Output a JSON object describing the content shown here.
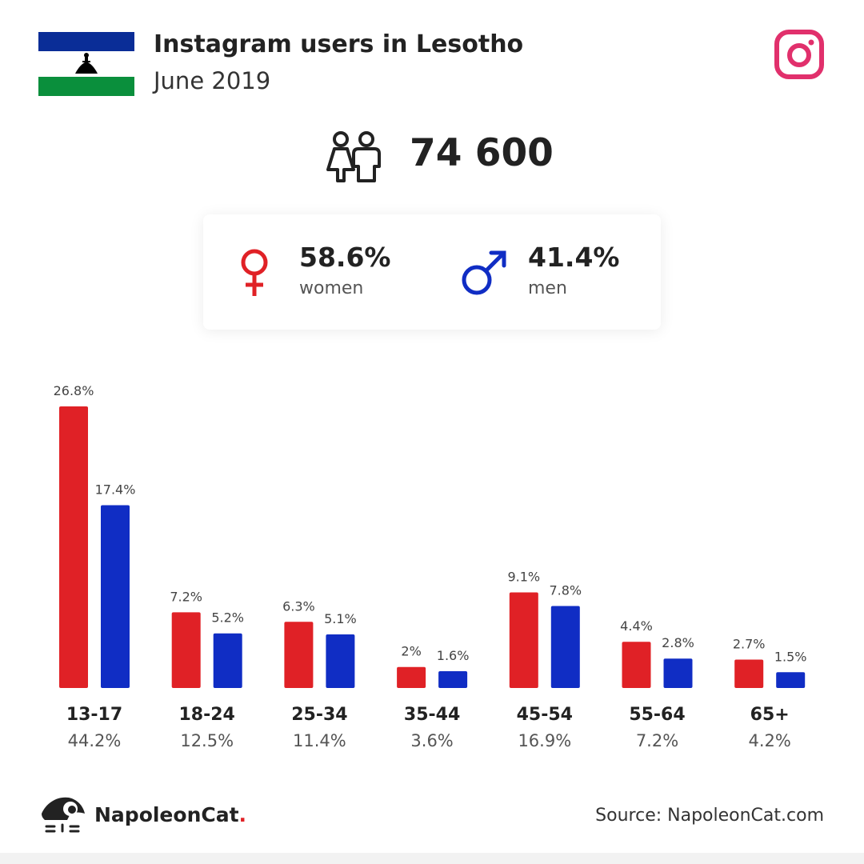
{
  "header": {
    "title": "Instagram users in Lesotho",
    "subtitle": "June 2019"
  },
  "total": {
    "value": "74 600",
    "icon": "people-icon"
  },
  "gender": {
    "women": {
      "percent": "58.6%",
      "label": "women",
      "icon": "female-icon"
    },
    "men": {
      "percent": "41.4%",
      "label": "men",
      "icon": "male-icon"
    }
  },
  "colors": {
    "women": "#e02126",
    "men": "#102dc4",
    "instagram": "#e1306c",
    "flag_blue": "#0a2d97",
    "flag_green": "#0a8f3c"
  },
  "chart_data": {
    "type": "bar",
    "categories": [
      "13-17",
      "18-24",
      "25-34",
      "35-44",
      "45-54",
      "55-64",
      "65+"
    ],
    "category_totals": [
      "44.2%",
      "12.5%",
      "11.4%",
      "3.6%",
      "16.9%",
      "7.2%",
      "4.2%"
    ],
    "series": [
      {
        "values": [
          26.8,
          7.2,
          6.3,
          2,
          9.1,
          4.4,
          2.7
        ],
        "labels": [
          "26.8%",
          "7.2%",
          "6.3%",
          "2%",
          "9.1%",
          "4.4%",
          "2.7%"
        ]
      },
      {
        "values": [
          17.4,
          5.2,
          5.1,
          1.6,
          7.8,
          2.8,
          1.5
        ],
        "labels": [
          "17.4%",
          "5.2%",
          "5.1%",
          "1.6%",
          "7.8%",
          "2.8%",
          "1.5%"
        ]
      }
    ],
    "ylim": [
      0,
      26.8
    ]
  },
  "footer": {
    "brand": "NapoleonCat",
    "brand_dot": ".",
    "source": "Source: NapoleonCat.com"
  }
}
